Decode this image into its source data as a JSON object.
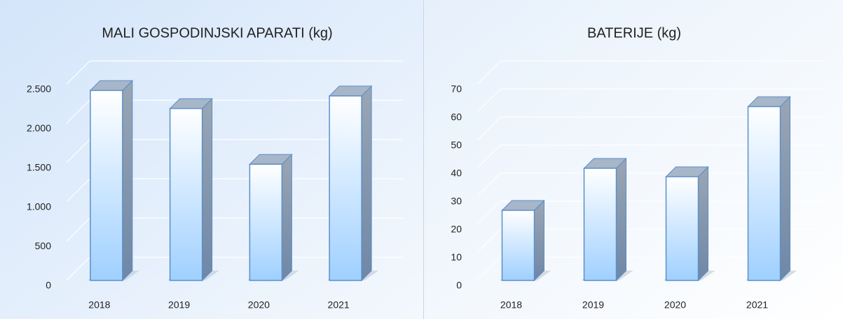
{
  "chart_data": [
    {
      "type": "bar3d",
      "title": "MALI GOSPODINJSKI  APARATI (kg)",
      "categories": [
        "2018",
        "2019",
        "2020",
        "2021"
      ],
      "values": [
        2420,
        2190,
        1480,
        2350
      ],
      "ylim": [
        0,
        2500
      ],
      "yticks": [
        0,
        500,
        {
          "value": 1000,
          "label": "1.000"
        },
        {
          "value": 1500,
          "label": "1.500"
        },
        {
          "value": 2000,
          "label": "2.000"
        },
        {
          "value": 2500,
          "label": "2.500"
        }
      ],
      "grid": true,
      "color": "#9fd0ff"
    },
    {
      "type": "bar3d",
      "title": "BATERIJE  (kg)",
      "categories": [
        "2018",
        "2019",
        "2020",
        "2021"
      ],
      "values": [
        25,
        40,
        37,
        62
      ],
      "ylim": [
        0,
        70
      ],
      "yticks": [
        0,
        10,
        20,
        30,
        40,
        50,
        60,
        70
      ],
      "grid": true,
      "color": "#9fd0ff"
    }
  ]
}
